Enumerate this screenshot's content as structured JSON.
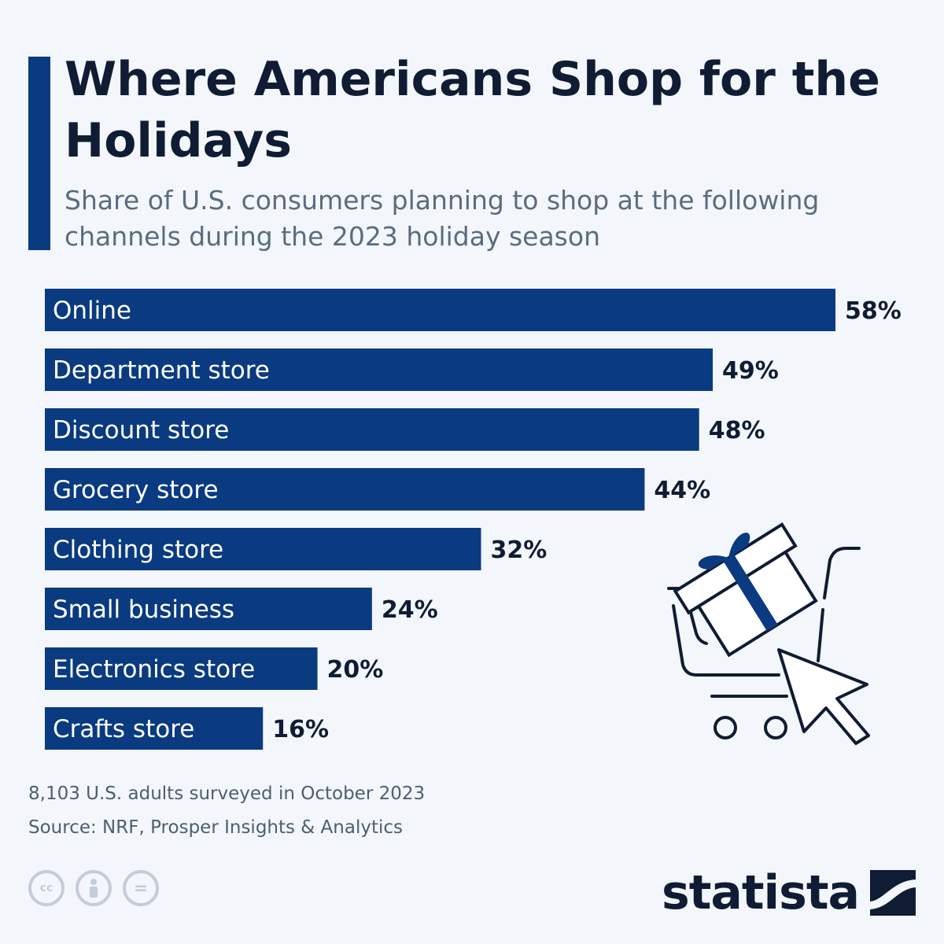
{
  "title": "Where Americans Shop for the Holidays",
  "subtitle": "Share of U.S. consumers planning to shop at the following channels during the 2023 holiday season",
  "chart_data": {
    "type": "bar",
    "orientation": "horizontal",
    "categories": [
      "Online",
      "Department store",
      "Discount store",
      "Grocery store",
      "Clothing store",
      "Small business",
      "Electronics store",
      "Crafts store"
    ],
    "values": [
      58,
      49,
      48,
      44,
      32,
      24,
      20,
      16
    ],
    "value_labels": [
      "58%",
      "49%",
      "48%",
      "44%",
      "32%",
      "24%",
      "20%",
      "16%"
    ],
    "unit": "%",
    "bar_color": "#0a3a80",
    "label_color_inside": "#ffffff",
    "value_label_color": "#0f1c33",
    "xlim": [
      0,
      58
    ]
  },
  "footer": {
    "note": "8,103 U.S. adults surveyed in October 2023",
    "source": "Source: NRF, Prosper Insights & Analytics"
  },
  "license": {
    "cc_label": "cc",
    "equals_label": "="
  },
  "logo": {
    "text": "statista"
  },
  "colors": {
    "background": "#f3f7fb",
    "accent": "#0a3a80",
    "title": "#0f1c33",
    "subtitle": "#5a6c80"
  },
  "illustration": {
    "icon": "shopping-cart-gift-cursor-icon"
  }
}
